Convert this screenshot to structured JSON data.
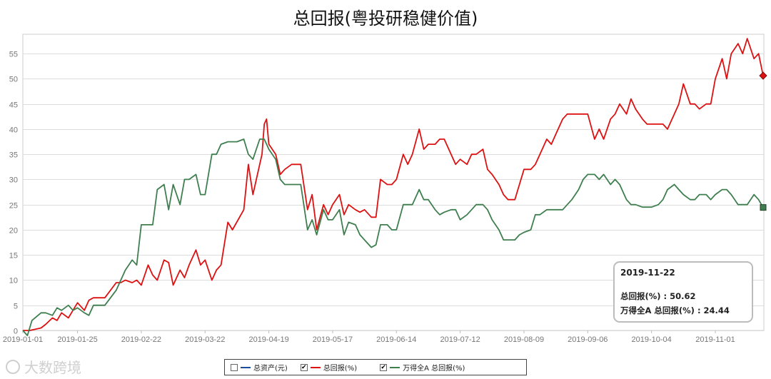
{
  "chart_data": {
    "type": "line",
    "title": "总回报(粤投研稳健价值)",
    "ylim": [
      0,
      58
    ],
    "yticks": [
      0,
      5,
      10,
      15,
      20,
      25,
      30,
      35,
      40,
      45,
      50,
      55
    ],
    "grid": true,
    "legend_position": "bottom-center",
    "x_tick_labels": [
      "2019-01-01",
      "2019-01-25",
      "2019-02-22",
      "2019-03-22",
      "2019-04-19",
      "2019-05-17",
      "2019-06-14",
      "2019-07-12",
      "2019-08-09",
      "2019-09-06",
      "2019-10-04",
      "2019-11-01"
    ],
    "x_range": [
      "2019-01-01",
      "2019-11-22"
    ],
    "series": [
      {
        "name": "总资产(元)",
        "color": "#1f4e9c",
        "visible": false,
        "points": []
      },
      {
        "name": "总回报(%)",
        "color": "#dd1111",
        "visible": true,
        "points": [
          [
            "2019-01-01",
            0
          ],
          [
            "2019-01-04",
            0
          ],
          [
            "2019-01-09",
            0.5
          ],
          [
            "2019-01-11",
            1.2
          ],
          [
            "2019-01-14",
            2.5
          ],
          [
            "2019-01-16",
            2
          ],
          [
            "2019-01-18",
            3.5
          ],
          [
            "2019-01-21",
            2.5
          ],
          [
            "2019-01-23",
            4
          ],
          [
            "2019-01-25",
            5.5
          ],
          [
            "2019-01-28",
            4
          ],
          [
            "2019-01-30",
            6
          ],
          [
            "2019-02-01",
            6.5
          ],
          [
            "2019-02-06",
            6.5
          ],
          [
            "2019-02-11",
            9.5
          ],
          [
            "2019-02-13",
            9.5
          ],
          [
            "2019-02-15",
            10
          ],
          [
            "2019-02-18",
            9.5
          ],
          [
            "2019-02-20",
            10
          ],
          [
            "2019-02-22",
            9
          ],
          [
            "2019-02-25",
            13
          ],
          [
            "2019-02-27",
            11
          ],
          [
            "2019-03-01",
            10
          ],
          [
            "2019-03-04",
            14
          ],
          [
            "2019-03-06",
            13.5
          ],
          [
            "2019-03-08",
            9
          ],
          [
            "2019-03-11",
            12
          ],
          [
            "2019-03-13",
            10.5
          ],
          [
            "2019-03-15",
            13
          ],
          [
            "2019-03-18",
            16
          ],
          [
            "2019-03-20",
            13
          ],
          [
            "2019-03-22",
            14
          ],
          [
            "2019-03-25",
            10
          ],
          [
            "2019-03-27",
            12
          ],
          [
            "2019-03-29",
            13
          ],
          [
            "2019-04-01",
            21.5
          ],
          [
            "2019-04-03",
            20
          ],
          [
            "2019-04-08",
            24
          ],
          [
            "2019-04-10",
            33
          ],
          [
            "2019-04-12",
            27
          ],
          [
            "2019-04-15",
            33
          ],
          [
            "2019-04-16",
            35
          ],
          [
            "2019-04-17",
            41
          ],
          [
            "2019-04-18",
            42
          ],
          [
            "2019-04-19",
            37
          ],
          [
            "2019-04-22",
            35
          ],
          [
            "2019-04-24",
            31
          ],
          [
            "2019-04-26",
            32
          ],
          [
            "2019-04-29",
            33
          ],
          [
            "2019-05-01",
            33
          ],
          [
            "2019-05-03",
            33
          ],
          [
            "2019-05-06",
            24
          ],
          [
            "2019-05-08",
            27
          ],
          [
            "2019-05-10",
            20
          ],
          [
            "2019-05-13",
            25
          ],
          [
            "2019-05-15",
            23
          ],
          [
            "2019-05-17",
            25
          ],
          [
            "2019-05-20",
            27
          ],
          [
            "2019-05-22",
            23
          ],
          [
            "2019-05-24",
            25
          ],
          [
            "2019-05-27",
            24
          ],
          [
            "2019-05-29",
            23.5
          ],
          [
            "2019-05-31",
            24
          ],
          [
            "2019-06-03",
            22.5
          ],
          [
            "2019-06-05",
            22.5
          ],
          [
            "2019-06-07",
            30
          ],
          [
            "2019-06-10",
            29
          ],
          [
            "2019-06-12",
            29
          ],
          [
            "2019-06-14",
            30
          ],
          [
            "2019-06-17",
            35
          ],
          [
            "2019-06-19",
            33
          ],
          [
            "2019-06-21",
            35
          ],
          [
            "2019-06-24",
            40
          ],
          [
            "2019-06-26",
            36
          ],
          [
            "2019-06-28",
            37
          ],
          [
            "2019-07-01",
            37
          ],
          [
            "2019-07-03",
            38
          ],
          [
            "2019-07-05",
            38
          ],
          [
            "2019-07-08",
            35
          ],
          [
            "2019-07-10",
            33
          ],
          [
            "2019-07-12",
            34
          ],
          [
            "2019-07-15",
            33
          ],
          [
            "2019-07-17",
            35
          ],
          [
            "2019-07-19",
            35
          ],
          [
            "2019-07-22",
            36
          ],
          [
            "2019-07-24",
            32
          ],
          [
            "2019-07-26",
            31
          ],
          [
            "2019-07-29",
            29
          ],
          [
            "2019-07-31",
            27
          ],
          [
            "2019-08-02",
            26
          ],
          [
            "2019-08-05",
            26
          ],
          [
            "2019-08-07",
            29
          ],
          [
            "2019-08-09",
            32
          ],
          [
            "2019-08-12",
            32
          ],
          [
            "2019-08-14",
            33
          ],
          [
            "2019-08-16",
            35
          ],
          [
            "2019-08-19",
            38
          ],
          [
            "2019-08-21",
            37
          ],
          [
            "2019-08-23",
            39
          ],
          [
            "2019-08-26",
            42
          ],
          [
            "2019-08-28",
            43
          ],
          [
            "2019-08-30",
            43
          ],
          [
            "2019-09-02",
            43
          ],
          [
            "2019-09-04",
            43
          ],
          [
            "2019-09-06",
            43
          ],
          [
            "2019-09-09",
            38
          ],
          [
            "2019-09-11",
            40
          ],
          [
            "2019-09-13",
            38
          ],
          [
            "2019-09-16",
            42
          ],
          [
            "2019-09-18",
            43
          ],
          [
            "2019-09-20",
            45
          ],
          [
            "2019-09-23",
            43
          ],
          [
            "2019-09-25",
            46
          ],
          [
            "2019-09-27",
            44
          ],
          [
            "2019-09-30",
            42
          ],
          [
            "2019-10-02",
            41
          ],
          [
            "2019-10-04",
            41
          ],
          [
            "2019-10-07",
            41
          ],
          [
            "2019-10-09",
            41
          ],
          [
            "2019-10-11",
            40
          ],
          [
            "2019-10-14",
            43
          ],
          [
            "2019-10-16",
            45
          ],
          [
            "2019-10-18",
            49
          ],
          [
            "2019-10-21",
            45
          ],
          [
            "2019-10-23",
            45
          ],
          [
            "2019-10-25",
            44
          ],
          [
            "2019-10-28",
            45
          ],
          [
            "2019-10-30",
            45
          ],
          [
            "2019-11-01",
            50
          ],
          [
            "2019-11-04",
            54
          ],
          [
            "2019-11-06",
            50
          ],
          [
            "2019-11-08",
            55
          ],
          [
            "2019-11-11",
            57
          ],
          [
            "2019-11-13",
            55
          ],
          [
            "2019-11-15",
            58
          ],
          [
            "2019-11-18",
            54
          ],
          [
            "2019-11-20",
            55
          ],
          [
            "2019-11-22",
            50.62
          ]
        ]
      },
      {
        "name": "万得全A 总回报(%)",
        "color": "#3f7f4f",
        "visible": true,
        "points": [
          [
            "2019-01-01",
            0
          ],
          [
            "2019-01-03",
            -1
          ],
          [
            "2019-01-05",
            2
          ],
          [
            "2019-01-09",
            3.5
          ],
          [
            "2019-01-11",
            3.5
          ],
          [
            "2019-01-14",
            3
          ],
          [
            "2019-01-16",
            4.5
          ],
          [
            "2019-01-18",
            4
          ],
          [
            "2019-01-21",
            5
          ],
          [
            "2019-01-23",
            4
          ],
          [
            "2019-01-25",
            4.5
          ],
          [
            "2019-01-28",
            3.5
          ],
          [
            "2019-01-30",
            3
          ],
          [
            "2019-02-01",
            5
          ],
          [
            "2019-02-06",
            5
          ],
          [
            "2019-02-11",
            8
          ],
          [
            "2019-02-13",
            10
          ],
          [
            "2019-02-15",
            12
          ],
          [
            "2019-02-18",
            14
          ],
          [
            "2019-02-20",
            13
          ],
          [
            "2019-02-22",
            21
          ],
          [
            "2019-02-25",
            21
          ],
          [
            "2019-02-27",
            21
          ],
          [
            "2019-03-01",
            28
          ],
          [
            "2019-03-04",
            29
          ],
          [
            "2019-03-06",
            24
          ],
          [
            "2019-03-08",
            29
          ],
          [
            "2019-03-11",
            25
          ],
          [
            "2019-03-13",
            30
          ],
          [
            "2019-03-15",
            30
          ],
          [
            "2019-03-18",
            31
          ],
          [
            "2019-03-20",
            27
          ],
          [
            "2019-03-22",
            27
          ],
          [
            "2019-03-25",
            35
          ],
          [
            "2019-03-27",
            35
          ],
          [
            "2019-03-29",
            37
          ],
          [
            "2019-04-01",
            37.5
          ],
          [
            "2019-04-03",
            37.5
          ],
          [
            "2019-04-05",
            37.5
          ],
          [
            "2019-04-08",
            38
          ],
          [
            "2019-04-10",
            35
          ],
          [
            "2019-04-12",
            34
          ],
          [
            "2019-04-15",
            38
          ],
          [
            "2019-04-17",
            38
          ],
          [
            "2019-04-19",
            36
          ],
          [
            "2019-04-22",
            34
          ],
          [
            "2019-04-24",
            30
          ],
          [
            "2019-04-26",
            29
          ],
          [
            "2019-04-29",
            29
          ],
          [
            "2019-05-01",
            29
          ],
          [
            "2019-05-03",
            29
          ],
          [
            "2019-05-06",
            20
          ],
          [
            "2019-05-08",
            22
          ],
          [
            "2019-05-10",
            19
          ],
          [
            "2019-05-13",
            24
          ],
          [
            "2019-05-15",
            22
          ],
          [
            "2019-05-17",
            22
          ],
          [
            "2019-05-20",
            24
          ],
          [
            "2019-05-22",
            19
          ],
          [
            "2019-05-24",
            21.5
          ],
          [
            "2019-05-27",
            21
          ],
          [
            "2019-05-29",
            19
          ],
          [
            "2019-05-31",
            18
          ],
          [
            "2019-06-03",
            16.5
          ],
          [
            "2019-06-05",
            17
          ],
          [
            "2019-06-07",
            21
          ],
          [
            "2019-06-10",
            21
          ],
          [
            "2019-06-12",
            20
          ],
          [
            "2019-06-14",
            20
          ],
          [
            "2019-06-17",
            25
          ],
          [
            "2019-06-19",
            25
          ],
          [
            "2019-06-21",
            25
          ],
          [
            "2019-06-24",
            28
          ],
          [
            "2019-06-26",
            26
          ],
          [
            "2019-06-28",
            26
          ],
          [
            "2019-07-01",
            24
          ],
          [
            "2019-07-03",
            23
          ],
          [
            "2019-07-05",
            23.5
          ],
          [
            "2019-07-08",
            24
          ],
          [
            "2019-07-10",
            24
          ],
          [
            "2019-07-12",
            22
          ],
          [
            "2019-07-15",
            23
          ],
          [
            "2019-07-17",
            24
          ],
          [
            "2019-07-19",
            25
          ],
          [
            "2019-07-22",
            25
          ],
          [
            "2019-07-24",
            24
          ],
          [
            "2019-07-26",
            22
          ],
          [
            "2019-07-29",
            20
          ],
          [
            "2019-07-31",
            18
          ],
          [
            "2019-08-02",
            18
          ],
          [
            "2019-08-05",
            18
          ],
          [
            "2019-08-07",
            19
          ],
          [
            "2019-08-09",
            19.5
          ],
          [
            "2019-08-12",
            20
          ],
          [
            "2019-08-14",
            23
          ],
          [
            "2019-08-16",
            23
          ],
          [
            "2019-08-19",
            24
          ],
          [
            "2019-08-21",
            24
          ],
          [
            "2019-08-23",
            24
          ],
          [
            "2019-08-26",
            24
          ],
          [
            "2019-08-28",
            25
          ],
          [
            "2019-08-30",
            26
          ],
          [
            "2019-09-02",
            28
          ],
          [
            "2019-09-04",
            30
          ],
          [
            "2019-09-06",
            31
          ],
          [
            "2019-09-09",
            31
          ],
          [
            "2019-09-11",
            30
          ],
          [
            "2019-09-13",
            31
          ],
          [
            "2019-09-16",
            29
          ],
          [
            "2019-09-18",
            30
          ],
          [
            "2019-09-20",
            29
          ],
          [
            "2019-09-23",
            26
          ],
          [
            "2019-09-25",
            25
          ],
          [
            "2019-09-27",
            25
          ],
          [
            "2019-09-30",
            24.5
          ],
          [
            "2019-10-02",
            24.5
          ],
          [
            "2019-10-04",
            24.5
          ],
          [
            "2019-10-07",
            25
          ],
          [
            "2019-10-09",
            26
          ],
          [
            "2019-10-11",
            28
          ],
          [
            "2019-10-14",
            29
          ],
          [
            "2019-10-16",
            28
          ],
          [
            "2019-10-18",
            27
          ],
          [
            "2019-10-21",
            26
          ],
          [
            "2019-10-23",
            26
          ],
          [
            "2019-10-25",
            27
          ],
          [
            "2019-10-28",
            27
          ],
          [
            "2019-10-30",
            26
          ],
          [
            "2019-11-01",
            27
          ],
          [
            "2019-11-04",
            28
          ],
          [
            "2019-11-06",
            28
          ],
          [
            "2019-11-08",
            27
          ],
          [
            "2019-11-11",
            25
          ],
          [
            "2019-11-13",
            25
          ],
          [
            "2019-11-15",
            25
          ],
          [
            "2019-11-18",
            27
          ],
          [
            "2019-11-20",
            26
          ],
          [
            "2019-11-22",
            24.44
          ]
        ]
      }
    ]
  },
  "tooltip": {
    "date": "2019-11-22",
    "row1_label": "总回报(%) : ",
    "row1_value": "50.62",
    "row2_label": "万得全A 总回报(%) : ",
    "row2_value": "24.44"
  },
  "legend": {
    "items": [
      {
        "label": "总资产(元)",
        "checked": false,
        "color": "#1f4e9c"
      },
      {
        "label": "总回报(%)",
        "checked": true,
        "color": "#dd1111"
      },
      {
        "label": "万得全A 总回报(%)",
        "checked": true,
        "color": "#3f7f4f"
      }
    ],
    "check_mark": "✔"
  },
  "watermark": {
    "text": "大数跨境"
  }
}
